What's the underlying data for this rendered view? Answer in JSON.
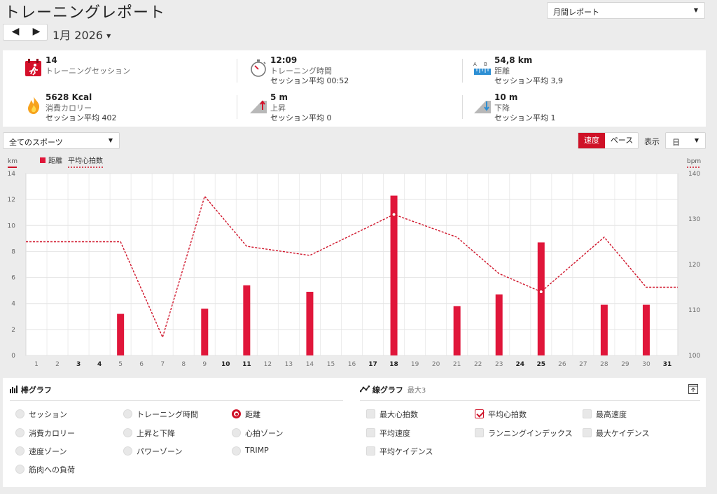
{
  "page": {
    "title": "トレーニングレポート"
  },
  "report_select": {
    "value": "月間レポート"
  },
  "nav": {
    "prev": "◀",
    "next": "▶",
    "month": "1月 2026"
  },
  "summary": [
    {
      "icon": "calendar-run-icon",
      "value": "14",
      "label": "トレーニングセッション",
      "sub": ""
    },
    {
      "icon": "stopwatch-icon",
      "value": "12:09",
      "label": "トレーニング時間",
      "sub": "セッション平均 00:52"
    },
    {
      "icon": "ruler-distance-icon",
      "value": "54,8 km",
      "label": "距離",
      "sub": "セッション平均 3,9"
    },
    {
      "icon": "flame-icon",
      "value": "5628 Kcal",
      "label": "消費カロリー",
      "sub": "セッション平均 402"
    },
    {
      "icon": "ascent-icon",
      "value": "5 m",
      "label": "上昇",
      "sub": "セッション平均 0"
    },
    {
      "icon": "descent-icon",
      "value": "10 m",
      "label": "下降",
      "sub": "セッション平均 1"
    }
  ],
  "ruler_letters": {
    "a": "A",
    "b": "B"
  },
  "filters": {
    "sport": "全てのスポーツ",
    "speed": "速度",
    "pace": "ペース",
    "display_label": "表示",
    "display_value": "日"
  },
  "chart_data": {
    "type": "bar+line",
    "left_unit": "km",
    "right_unit": "bpm",
    "legend": [
      "距離",
      "平均心拍数"
    ],
    "x": [
      1,
      2,
      3,
      4,
      5,
      6,
      7,
      8,
      9,
      10,
      11,
      12,
      13,
      14,
      15,
      16,
      17,
      18,
      19,
      20,
      21,
      22,
      23,
      24,
      25,
      26,
      27,
      28,
      29,
      30,
      31
    ],
    "bold_days": [
      3,
      4,
      10,
      11,
      17,
      18,
      24,
      25,
      31
    ],
    "yleft_ticks": [
      0,
      2,
      4,
      6,
      8,
      10,
      12,
      14
    ],
    "yright_ticks": [
      100,
      110,
      120,
      130,
      140
    ],
    "ylim_left": [
      0,
      14
    ],
    "ylim_right": [
      100,
      140
    ],
    "distance_km": [
      {
        "x": 5,
        "y": 3.2
      },
      {
        "x": 9,
        "y": 3.6
      },
      {
        "x": 11,
        "y": 5.4
      },
      {
        "x": 14,
        "y": 4.9
      },
      {
        "x": 18,
        "y": 12.3
      },
      {
        "x": 21,
        "y": 3.8
      },
      {
        "x": 23,
        "y": 4.7
      },
      {
        "x": 25,
        "y": 8.7
      },
      {
        "x": 28,
        "y": 3.9
      },
      {
        "x": 30,
        "y": 3.9
      }
    ],
    "avg_hr_bpm": [
      {
        "x": 0.5,
        "y": 125
      },
      {
        "x": 5,
        "y": 125
      },
      {
        "x": 7,
        "y": 104
      },
      {
        "x": 9,
        "y": 135
      },
      {
        "x": 11,
        "y": 124
      },
      {
        "x": 14,
        "y": 122
      },
      {
        "x": 18,
        "y": 131
      },
      {
        "x": 21,
        "y": 126
      },
      {
        "x": 23,
        "y": 118
      },
      {
        "x": 25,
        "y": 114
      },
      {
        "x": 28,
        "y": 126
      },
      {
        "x": 30,
        "y": 115
      },
      {
        "x": 31.5,
        "y": 115
      }
    ],
    "hr_markers": [
      18,
      25
    ],
    "grid": true,
    "legend_position": "top-left"
  },
  "bar_graph": {
    "title": "棒グラフ",
    "options": [
      {
        "label": "セッション",
        "selected": false
      },
      {
        "label": "トレーニング時間",
        "selected": false
      },
      {
        "label": "距離",
        "selected": true
      },
      {
        "label": "消費カロリー",
        "selected": false
      },
      {
        "label": "上昇と下降",
        "selected": false
      },
      {
        "label": "心拍ゾーン",
        "selected": false
      },
      {
        "label": "速度ゾーン",
        "selected": false
      },
      {
        "label": "パワーゾーン",
        "selected": false
      },
      {
        "label": "TRIMP",
        "selected": false
      },
      {
        "label": "筋肉への負荷",
        "selected": false
      }
    ]
  },
  "line_graph": {
    "title": "線グラフ",
    "subtitle": "最大3",
    "options": [
      {
        "label": "最大心拍数",
        "selected": false
      },
      {
        "label": "平均心拍数",
        "selected": true
      },
      {
        "label": "最高速度",
        "selected": false
      },
      {
        "label": "平均速度",
        "selected": false
      },
      {
        "label": "ランニングインデックス",
        "selected": false
      },
      {
        "label": "最大ケイデンス",
        "selected": false
      },
      {
        "label": "平均ケイデンス",
        "selected": false
      }
    ]
  },
  "colors": {
    "accent": "#cf1127",
    "bar": "#e0163a"
  }
}
